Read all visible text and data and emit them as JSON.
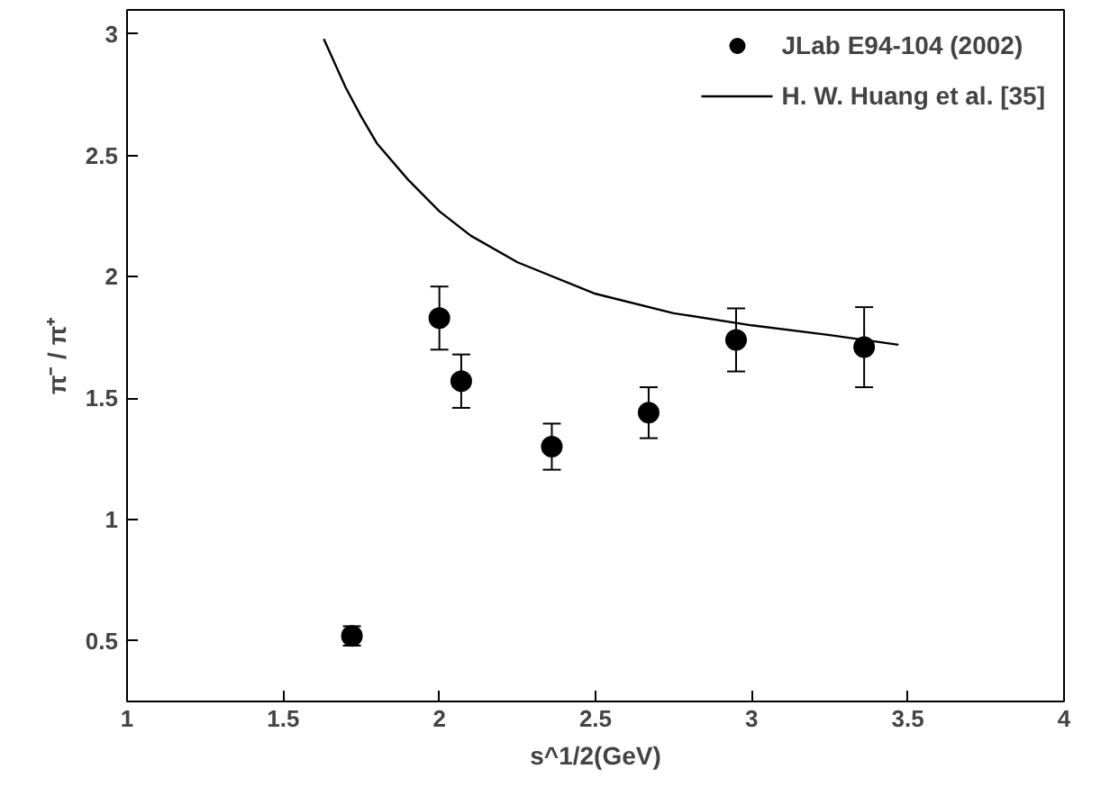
{
  "chart_data": {
    "type": "scatter",
    "xlabel": "s^1/2(GeV)",
    "ylabel": "π⁻ / π⁺",
    "xlim": [
      1,
      4
    ],
    "ylim": [
      0.25,
      3.1
    ],
    "xticks": [
      1,
      1.5,
      2,
      2.5,
      3,
      3.5,
      4
    ],
    "yticks": [
      0.5,
      1,
      1.5,
      2,
      2.5,
      3
    ],
    "grid": false,
    "legend": "top right",
    "marker": "circle",
    "series": [
      {
        "name": "JLab E94-104 (2002)",
        "color": "#000000",
        "x": [
          1.72,
          2.0,
          2.07,
          2.36,
          2.67,
          2.95,
          3.36
        ],
        "values": [
          0.52,
          1.83,
          1.57,
          1.3,
          1.44,
          1.74,
          1.71
        ],
        "errors": [
          0.04,
          0.13,
          0.11,
          0.095,
          0.105,
          0.13,
          0.165
        ]
      },
      {
        "name": "H. W. Huang et al. [35]",
        "type": "line",
        "color": "#000000",
        "line_style": "solid",
        "marker": "none",
        "x": [
          1.63,
          1.7,
          1.75,
          1.8,
          1.9,
          2.0,
          2.1,
          2.25,
          2.5,
          2.75,
          3.0,
          3.25,
          3.47
        ],
        "values": [
          2.98,
          2.78,
          2.66,
          2.55,
          2.4,
          2.27,
          2.17,
          2.06,
          1.93,
          1.85,
          1.8,
          1.76,
          1.72
        ]
      }
    ]
  }
}
